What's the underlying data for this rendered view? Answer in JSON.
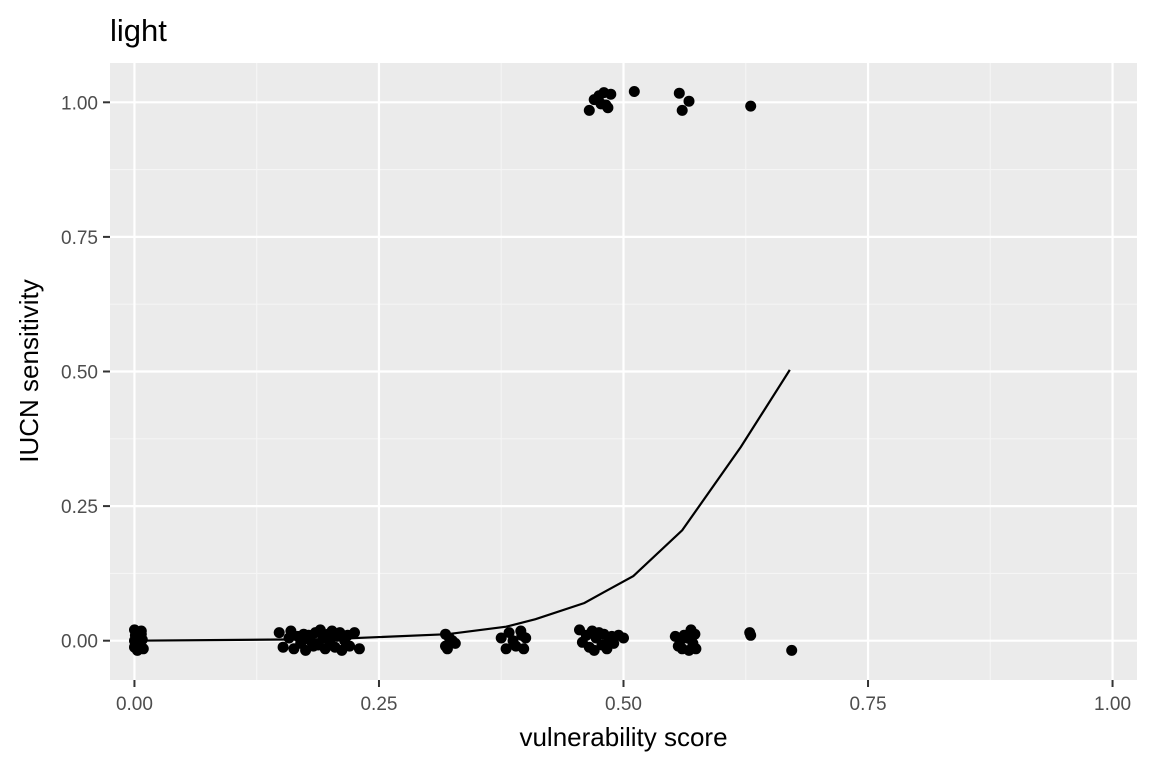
{
  "chart_data": {
    "type": "scatter",
    "title": "light",
    "xlabel": "vulnerability score",
    "ylabel": "IUCN sensitivity",
    "xlim": [
      -0.025,
      1.025
    ],
    "ylim": [
      -0.073,
      1.073
    ],
    "x_ticks": [
      0,
      0.25,
      0.5,
      0.75,
      1
    ],
    "x_tick_labels": [
      "0.00",
      "0.25",
      "0.50",
      "0.75",
      "1.00"
    ],
    "y_ticks": [
      0,
      0.25,
      0.5,
      0.75,
      1
    ],
    "y_tick_labels": [
      "0.00",
      "0.25",
      "0.50",
      "0.75",
      "1.00"
    ],
    "grid": true,
    "legend": "none",
    "colors": {
      "panel_background": "#ebebeb",
      "grid_major": "#ffffff",
      "grid_minor": "#f5f5f5",
      "points": "#000000",
      "line": "#000000",
      "tick_text": "#4d4d4d",
      "axis_text": "#000000"
    },
    "series": [
      {
        "type": "scatter",
        "points": [
          [
            0.0,
            0.02
          ],
          [
            0.003,
            0.015
          ],
          [
            0.007,
            0.018
          ],
          [
            0.001,
            0.01
          ],
          [
            0.006,
            0.008
          ],
          [
            0.004,
            0.005
          ],
          [
            0.0,
            0.0
          ],
          [
            0.008,
            0.002
          ],
          [
            0.002,
            -0.005
          ],
          [
            0.006,
            -0.003
          ],
          [
            0.0,
            -0.012
          ],
          [
            0.005,
            -0.01
          ],
          [
            0.009,
            -0.015
          ],
          [
            0.003,
            -0.018
          ],
          [
            0.007,
            0.012
          ],
          [
            0.148,
            0.015
          ],
          [
            0.152,
            -0.012
          ],
          [
            0.158,
            0.005
          ],
          [
            0.16,
            0.018
          ],
          [
            0.163,
            -0.015
          ],
          [
            0.167,
            0.008
          ],
          [
            0.17,
            -0.005
          ],
          [
            0.173,
            0.012
          ],
          [
            0.175,
            -0.018
          ],
          [
            0.178,
            0.01
          ],
          [
            0.18,
            0.0
          ],
          [
            0.183,
            -0.01
          ],
          [
            0.185,
            0.015
          ],
          [
            0.188,
            -0.008
          ],
          [
            0.19,
            0.02
          ],
          [
            0.193,
            0.005
          ],
          [
            0.195,
            -0.015
          ],
          [
            0.198,
            0.012
          ],
          [
            0.2,
            -0.005
          ],
          [
            0.202,
            0.018
          ],
          [
            0.205,
            -0.012
          ],
          [
            0.207,
            0.008
          ],
          [
            0.21,
            0.015
          ],
          [
            0.212,
            -0.018
          ],
          [
            0.215,
            0.0
          ],
          [
            0.218,
            0.01
          ],
          [
            0.22,
            -0.01
          ],
          [
            0.225,
            0.015
          ],
          [
            0.23,
            -0.015
          ],
          [
            0.318,
            0.012
          ],
          [
            0.322,
            0.005
          ],
          [
            0.318,
            -0.01
          ],
          [
            0.325,
            0.0
          ],
          [
            0.328,
            -0.005
          ],
          [
            0.32,
            -0.015
          ],
          [
            0.375,
            0.005
          ],
          [
            0.38,
            -0.015
          ],
          [
            0.383,
            0.015
          ],
          [
            0.387,
            0.0
          ],
          [
            0.39,
            -0.01
          ],
          [
            0.395,
            0.018
          ],
          [
            0.398,
            -0.015
          ],
          [
            0.4,
            0.005
          ],
          [
            0.396,
            0.01
          ],
          [
            0.455,
            0.02
          ],
          [
            0.458,
            -0.003
          ],
          [
            0.462,
            0.01
          ],
          [
            0.465,
            -0.012
          ],
          [
            0.468,
            0.018
          ],
          [
            0.47,
            -0.018
          ],
          [
            0.472,
            0.005
          ],
          [
            0.475,
            0.015
          ],
          [
            0.478,
            -0.008
          ],
          [
            0.48,
            0.012
          ],
          [
            0.483,
            -0.015
          ],
          [
            0.485,
            0.0
          ],
          [
            0.488,
            0.008
          ],
          [
            0.49,
            -0.005
          ],
          [
            0.495,
            0.01
          ],
          [
            0.5,
            0.005
          ],
          [
            0.553,
            0.008
          ],
          [
            0.556,
            -0.01
          ],
          [
            0.558,
            0.0
          ],
          [
            0.56,
            -0.015
          ],
          [
            0.562,
            0.01
          ],
          [
            0.565,
            0.005
          ],
          [
            0.567,
            -0.018
          ],
          [
            0.569,
            0.02
          ],
          [
            0.571,
            -0.005
          ],
          [
            0.573,
            0.012
          ],
          [
            0.574,
            -0.015
          ],
          [
            0.629,
            0.015
          ],
          [
            0.63,
            0.01
          ],
          [
            0.672,
            -0.018
          ],
          [
            0.465,
            0.985
          ],
          [
            0.47,
            1.005
          ],
          [
            0.475,
            1.012
          ],
          [
            0.477,
            0.997
          ],
          [
            0.48,
            1.018
          ],
          [
            0.482,
            0.995
          ],
          [
            0.484,
            0.99
          ],
          [
            0.487,
            1.015
          ],
          [
            0.511,
            1.02
          ],
          [
            0.557,
            1.017
          ],
          [
            0.56,
            0.985
          ],
          [
            0.567,
            1.002
          ],
          [
            0.63,
            0.993
          ]
        ]
      },
      {
        "type": "line",
        "points": [
          [
            0.0,
            0.0
          ],
          [
            0.2,
            0.003
          ],
          [
            0.32,
            0.012
          ],
          [
            0.38,
            0.026
          ],
          [
            0.41,
            0.04
          ],
          [
            0.46,
            0.07
          ],
          [
            0.48,
            0.09
          ],
          [
            0.51,
            0.12
          ],
          [
            0.56,
            0.205
          ],
          [
            0.62,
            0.36
          ],
          [
            0.67,
            0.503
          ]
        ]
      }
    ]
  }
}
